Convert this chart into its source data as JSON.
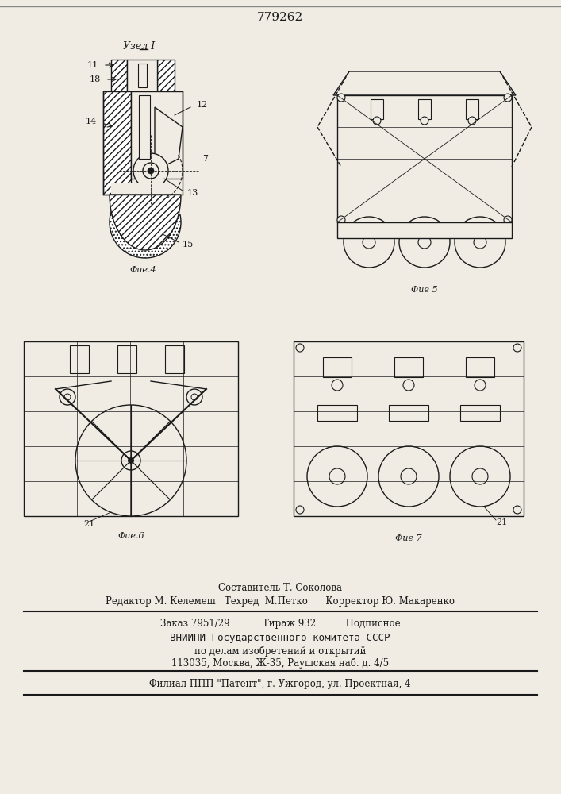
{
  "patent_number": "779262",
  "background_color": "#f0ece4",
  "drawing_color": "#1a1a1a",
  "hatch_color": "#1a1a1a",
  "fig4_label": "Фие.4",
  "fig5_label": "Фие 5",
  "fig6_label": "Фие.6",
  "fig7_label": "Фие 7",
  "node_label": "Узел I",
  "label_11": "11",
  "label_18": "18",
  "label_14": "14",
  "label_12": "12",
  "label_13": "13",
  "label_15": "15",
  "label_7": "7",
  "label_21a": "21",
  "label_21b": "21",
  "footer_line1": "Составитель Т. Соколова",
  "footer_line2": "Редактор М. Келемеш   Техред  М.Петко      Корректор Ю. Макаренко",
  "footer_line3": "Заказ 7951/29           Тираж 932          Подписное",
  "footer_line4": "ВНИИПИ Государственного комитета СССР",
  "footer_line5": "по делам изобретений и открытий",
  "footer_line6": "113035, Москва, Ж-35, Раушская наб. д. 4/5",
  "footer_line7": "Филиал ППП \"Патент\", г. Ужгород, ул. Проектная, 4"
}
